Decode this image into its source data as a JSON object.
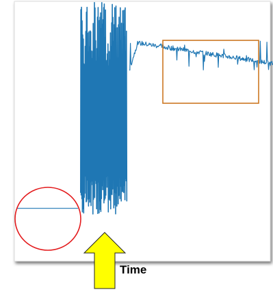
{
  "chart_data": {
    "type": "line",
    "title": "",
    "xlabel": "Time",
    "ylabel": "",
    "grid": false,
    "legend": "none",
    "xlim": [
      0,
      100
    ],
    "ylim": [
      0,
      100
    ],
    "series": [
      {
        "color": "#1f77b4",
        "segments": [
          {
            "phase": "flat-baseline",
            "x": [
              0,
              24
            ],
            "y_level": 6
          },
          {
            "phase": "high-amplitude-burst",
            "x": [
              25,
              43
            ],
            "y_min": 3,
            "y_max": 100
          },
          {
            "phase": "elevated-noisy-plateau",
            "x": [
              44,
              100
            ],
            "y_range": [
              69,
              84
            ]
          }
        ]
      }
    ],
    "annotations": [
      {
        "kind": "circle",
        "color": "#e31a1c",
        "label": ""
      },
      {
        "kind": "rectangle",
        "color": "#cc7722",
        "label": ""
      },
      {
        "kind": "arrow",
        "color": "#ffff00",
        "direction": "up",
        "label": ""
      }
    ]
  }
}
